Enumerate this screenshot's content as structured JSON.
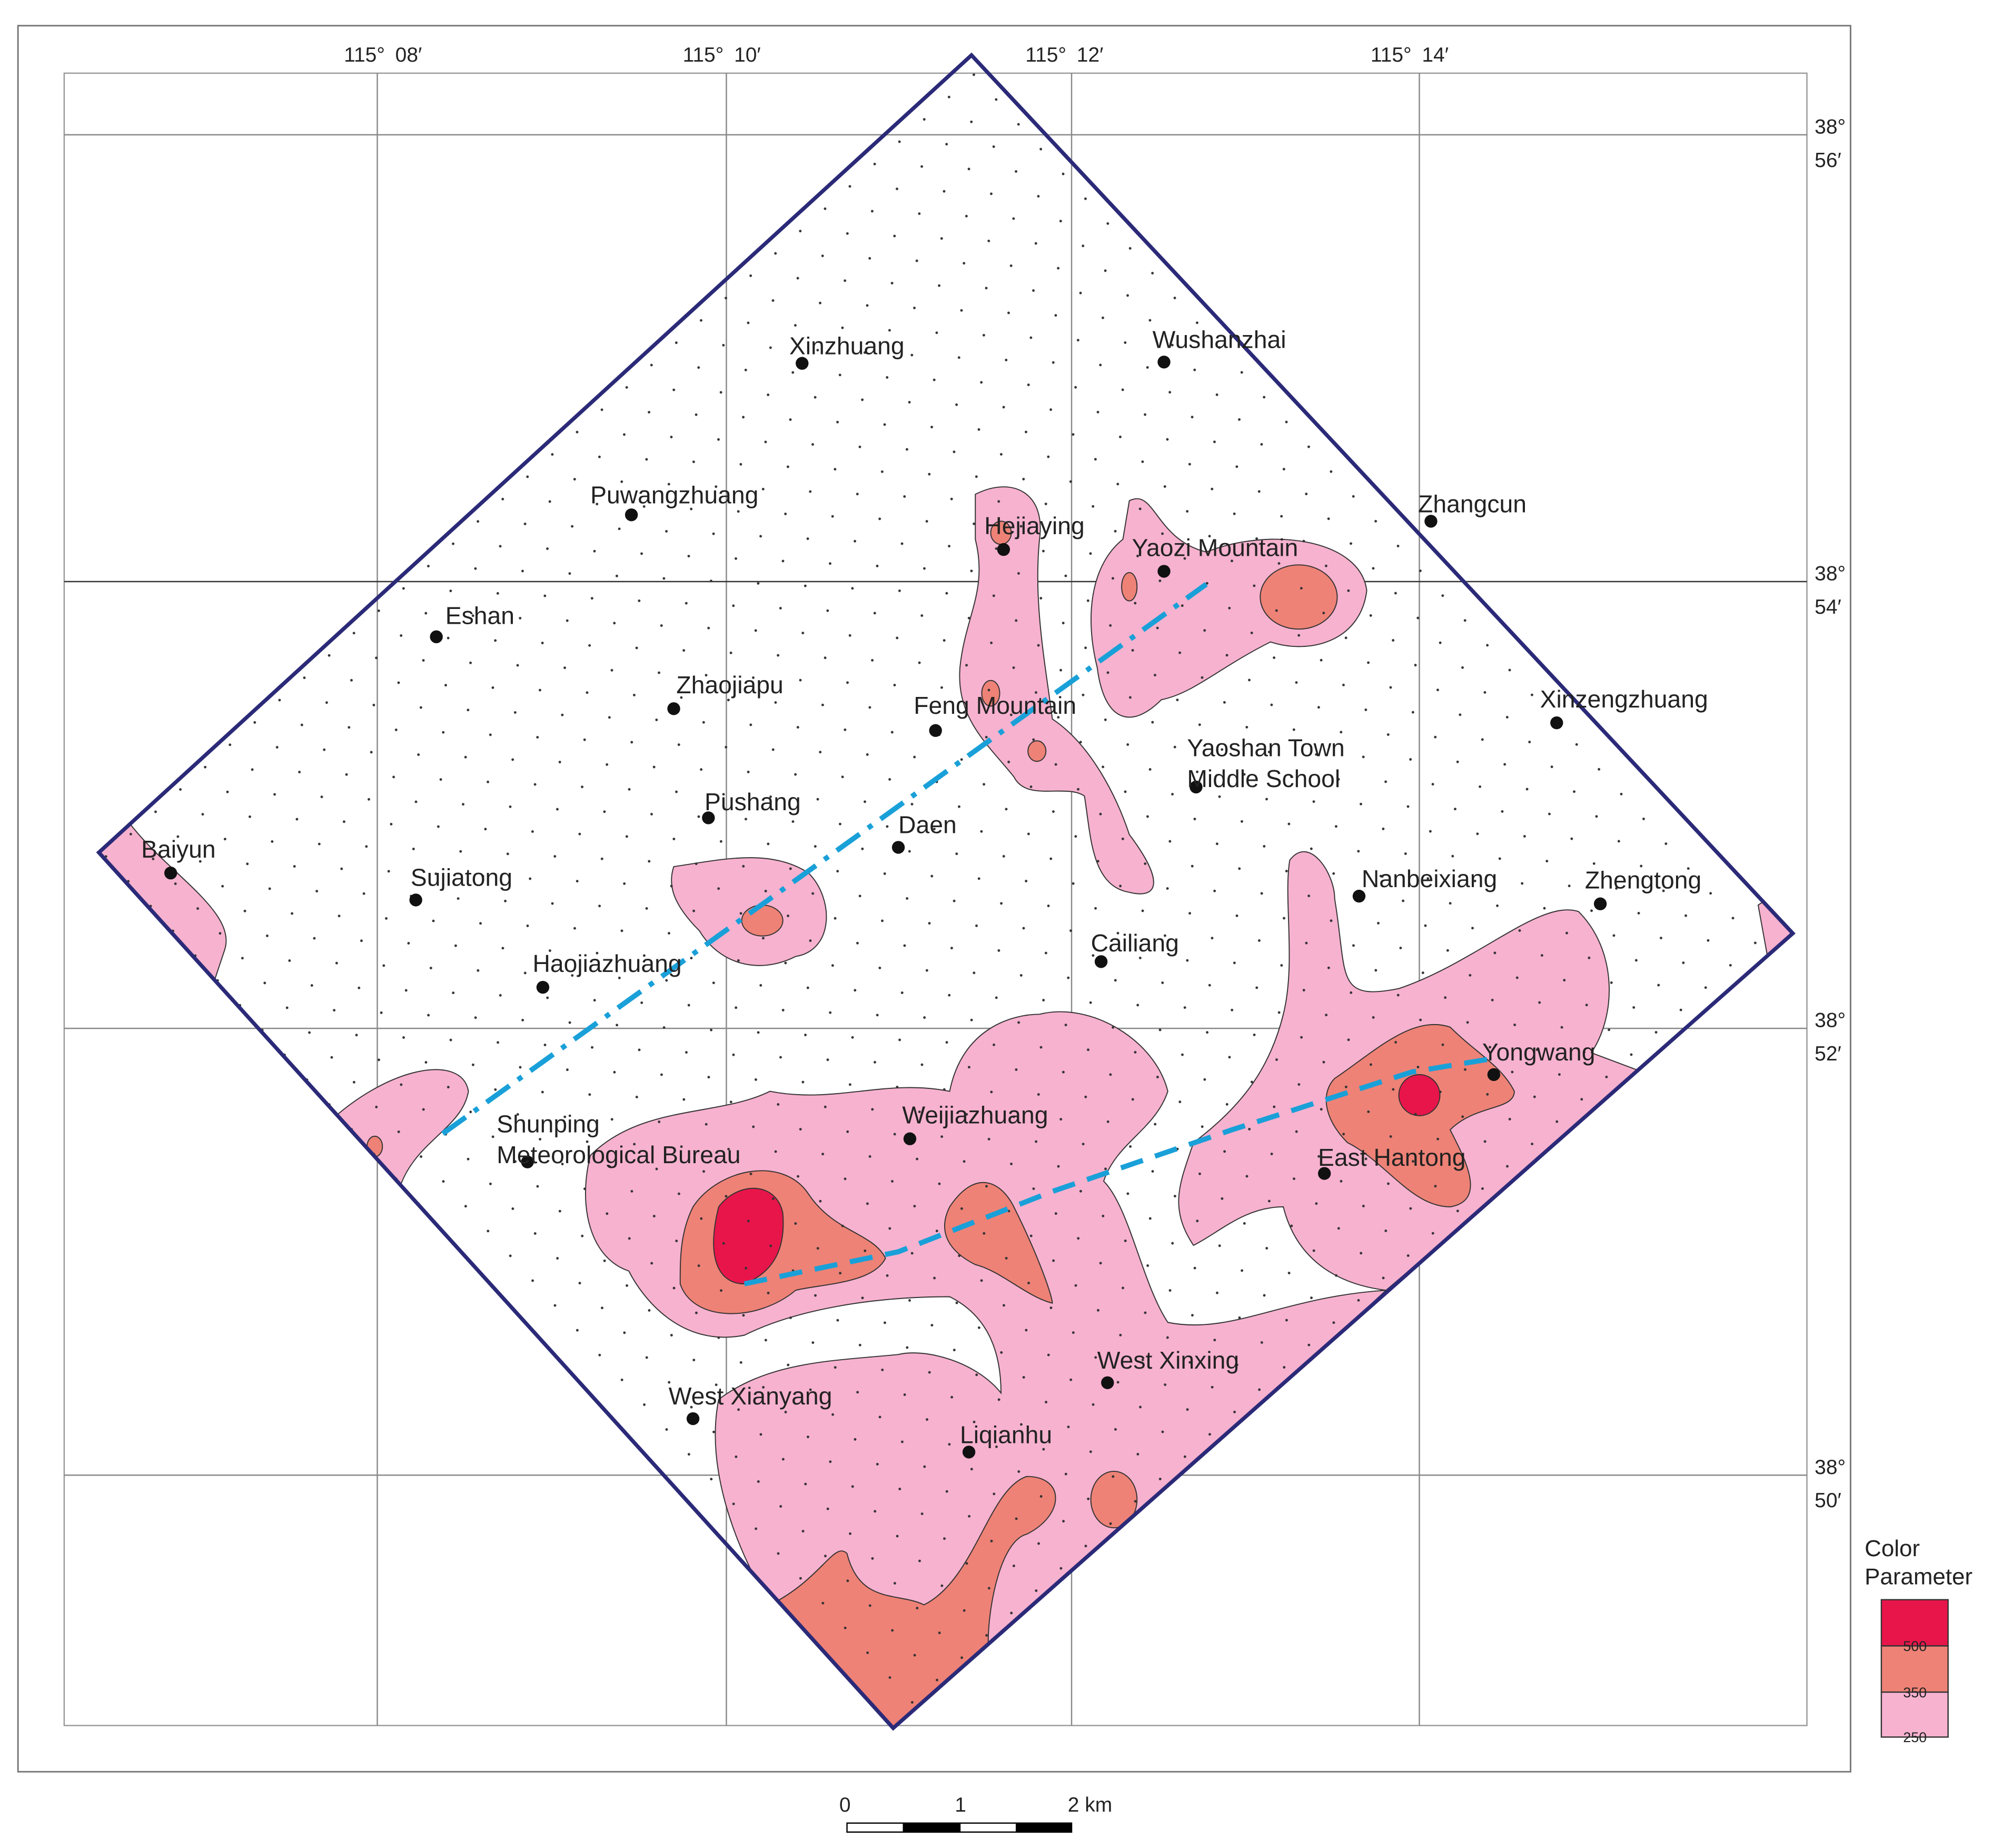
{
  "grid": {
    "longitudes": [
      [
        "115°",
        "08′"
      ],
      [
        "115°",
        "10′"
      ],
      [
        "115°",
        "12′"
      ],
      [
        "115°",
        "14′"
      ]
    ],
    "latitudes": [
      [
        "38°",
        "56′"
      ],
      [
        "38°",
        "54′"
      ],
      [
        "38°",
        "52′"
      ],
      [
        "38°",
        "50′"
      ]
    ]
  },
  "places": [
    [
      "Xinzhuang"
    ],
    [
      "Wushanzhai"
    ],
    [
      "Puwangzhuang"
    ],
    [
      "Zhangcun"
    ],
    [
      "Hejiaying"
    ],
    [
      "Yaozi Mountain"
    ],
    [
      "Eshan"
    ],
    [
      "Zhaojiapu"
    ],
    [
      "Feng Mountain"
    ],
    [
      "Xinzengzhuang"
    ],
    [
      "Yaoshan Town",
      "Middle School"
    ],
    [
      "Pushang"
    ],
    [
      "Daen"
    ],
    [
      "Baiyun"
    ],
    [
      "Sujiatong"
    ],
    [
      "Nanbeixiang"
    ],
    [
      "Zhengtong"
    ],
    [
      "Cailiang"
    ],
    [
      "Haojiazhuang"
    ],
    [
      "Yongwang"
    ],
    [
      "Weijiazhuang"
    ],
    [
      "Shunping",
      "Meteorological Bureau"
    ],
    [
      "East Hantong"
    ],
    [
      "West Xinxing"
    ],
    [
      "West Xianyang"
    ],
    [
      "Liqianhu"
    ]
  ],
  "legend": {
    "title": [
      "Color",
      "Parameter"
    ],
    "values": [
      500,
      350,
      250
    ]
  },
  "scale_bar": {
    "labels": [
      "0",
      "1",
      "2 km"
    ]
  }
}
